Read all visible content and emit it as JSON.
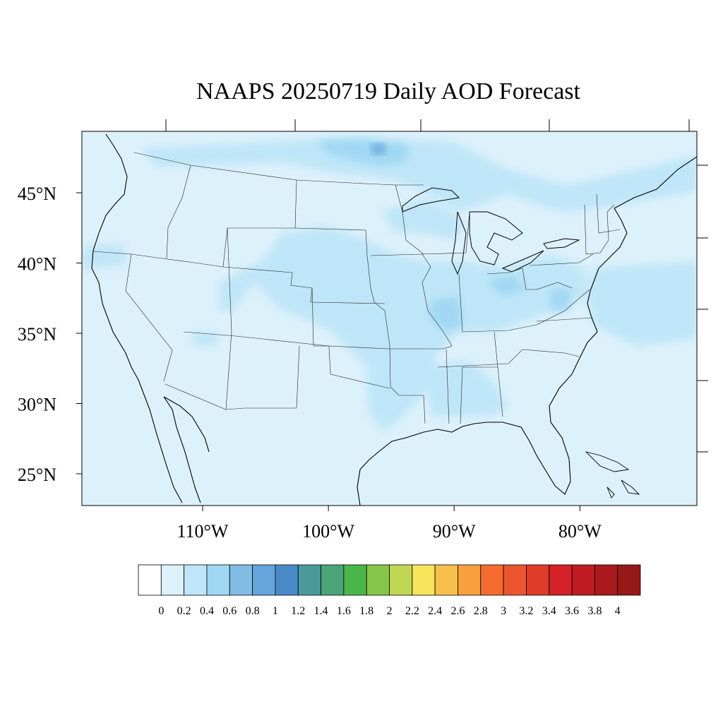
{
  "title": "NAAPS 20250719 Daily AOD Forecast",
  "map": {
    "lat_labels": [
      "45°N",
      "40°N",
      "35°N",
      "30°N",
      "25°N"
    ],
    "lon_labels": [
      "110°W",
      "100°W",
      "90°W",
      "80°W"
    ],
    "lat_values": [
      45,
      40,
      35,
      30,
      25
    ],
    "lon_values": [
      -110,
      -100,
      -90,
      -80
    ],
    "extent": {
      "lon": [
        -119.5,
        -70.5
      ],
      "lat": [
        22.5,
        49.5
      ]
    },
    "region": "Contiguous United States",
    "field": "aod"
  },
  "colorbar": {
    "colors": [
      "#ffffff",
      "#ddf1fb",
      "#bfe6f8",
      "#a0d8f3",
      "#82bde6",
      "#66a5db",
      "#4a8ac9",
      "#4a9a9a",
      "#4aa678",
      "#4ab64a",
      "#85c64a",
      "#c2d656",
      "#f8e45a",
      "#f8c04a",
      "#f8a03e",
      "#f56c2e",
      "#ec5530",
      "#e03c2a",
      "#d42228",
      "#be1c22",
      "#aa1a1c",
      "#961818"
    ],
    "labels": [
      "0",
      "0.2",
      "0.4",
      "0.6",
      "0.8",
      "1",
      "1.2",
      "1.4",
      "1.6",
      "1.8",
      "2",
      "2.2",
      "2.4",
      "2.6",
      "2.8",
      "3",
      "3.2",
      "3.4",
      "3.6",
      "3.8",
      "4"
    ]
  }
}
